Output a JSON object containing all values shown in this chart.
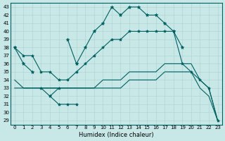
{
  "xlabel": "Humidex (Indice chaleur)",
  "bg_color": "#c8e8e8",
  "line_color": "#006060",
  "grid_color": "#b0d4d4",
  "ylim_min": 28.5,
  "ylim_max": 43.5,
  "xlim_min": -0.5,
  "xlim_max": 23.5,
  "yticks": [
    29,
    30,
    31,
    32,
    33,
    34,
    35,
    36,
    37,
    38,
    39,
    40,
    41,
    42,
    43
  ],
  "xticks": [
    0,
    1,
    2,
    3,
    4,
    5,
    6,
    7,
    8,
    9,
    10,
    11,
    12,
    13,
    14,
    15,
    16,
    17,
    18,
    19,
    20,
    21,
    22,
    23
  ],
  "line_jagged": [
    38,
    36,
    35,
    null,
    null,
    null,
    39,
    36,
    38,
    40,
    41,
    43,
    42,
    43,
    43,
    42,
    42,
    41,
    40,
    38,
    null,
    null,
    null,
    null
  ],
  "line_jagged2": [
    null,
    null,
    null,
    null,
    32,
    33,
    null,
    36,
    null,
    null,
    null,
    null,
    null,
    null,
    null,
    null,
    null,
    null,
    null,
    null,
    null,
    null,
    null,
    null
  ],
  "line_mid_jagged": [
    null,
    null,
    null,
    33,
    32,
    31,
    31,
    31,
    null,
    null,
    null,
    null,
    null,
    null,
    null,
    null,
    null,
    null,
    null,
    null,
    null,
    null,
    null,
    null
  ],
  "line_upper_smooth": [
    38,
    37,
    37,
    35,
    35,
    34,
    34,
    35,
    36,
    37,
    38,
    39,
    39,
    40,
    40,
    40,
    40,
    40,
    40,
    36,
    35,
    34,
    33,
    29
  ],
  "line_lower_smooth1": [
    34,
    33,
    33,
    33,
    33,
    33,
    33,
    33,
    33,
    33,
    34,
    34,
    34,
    35,
    35,
    35,
    35,
    36,
    36,
    36,
    36,
    34,
    33,
    29
  ],
  "line_lower_smooth2": [
    33,
    33,
    33,
    33,
    33,
    33,
    33,
    33,
    33,
    33,
    33,
    33,
    33,
    34,
    34,
    34,
    34,
    35,
    35,
    35,
    35,
    33,
    32,
    29
  ]
}
